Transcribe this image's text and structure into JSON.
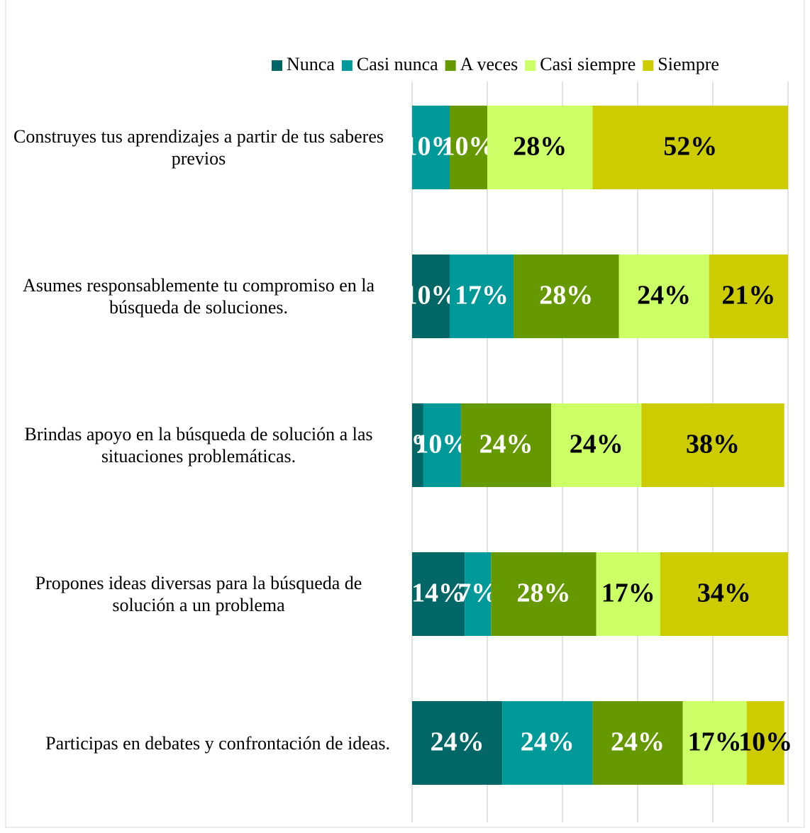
{
  "chart_data": {
    "type": "stacked_bar_horizontal",
    "categories": [
      "Construyes tus aprendizajes a partir de tus saberes previos",
      "Asumes responsablemente tu compromiso en la búsqueda de soluciones.",
      "Brindas apoyo en la búsqueda de solución a las situaciones problemáticas.",
      "Propones ideas diversas para la búsqueda de solución a un problema",
      "Participas en debates y confrontación de ideas."
    ],
    "series": [
      {
        "name": "Nunca",
        "color": "#006666",
        "label_color": "#ffffff",
        "values": [
          0,
          10,
          3,
          14,
          24
        ],
        "value_labels": [
          null,
          "10%",
          "3%",
          "14%",
          "24%"
        ]
      },
      {
        "name": "Casi nunca",
        "color": "#009999",
        "label_color": "#ffffff",
        "values": [
          10,
          17,
          10,
          7,
          24
        ],
        "value_labels": [
          "10%",
          "17%",
          "10%",
          "7%",
          "24%"
        ]
      },
      {
        "name": "A veces",
        "color": "#669900",
        "label_color": "#ffffff",
        "values": [
          10,
          28,
          24,
          28,
          24
        ],
        "value_labels": [
          "10%",
          "28%",
          "24%",
          "28%",
          "24%"
        ]
      },
      {
        "name": "Casi siempre",
        "color": "#ccff66",
        "label_color": "#000000",
        "values": [
          28,
          24,
          24,
          17,
          17
        ],
        "value_labels": [
          "28%",
          "24%",
          "24%",
          "17%",
          "17%"
        ]
      },
      {
        "name": "Siempre",
        "color": "#cccc00",
        "label_color": "#000000",
        "values": [
          52,
          21,
          38,
          34,
          10
        ],
        "value_labels": [
          "52%",
          "21%",
          "38%",
          "34%",
          "10%"
        ]
      }
    ],
    "xlim": [
      0,
      100
    ],
    "xticks": [
      0,
      20,
      40,
      60,
      80,
      100
    ],
    "grid": true,
    "legend": "top"
  }
}
